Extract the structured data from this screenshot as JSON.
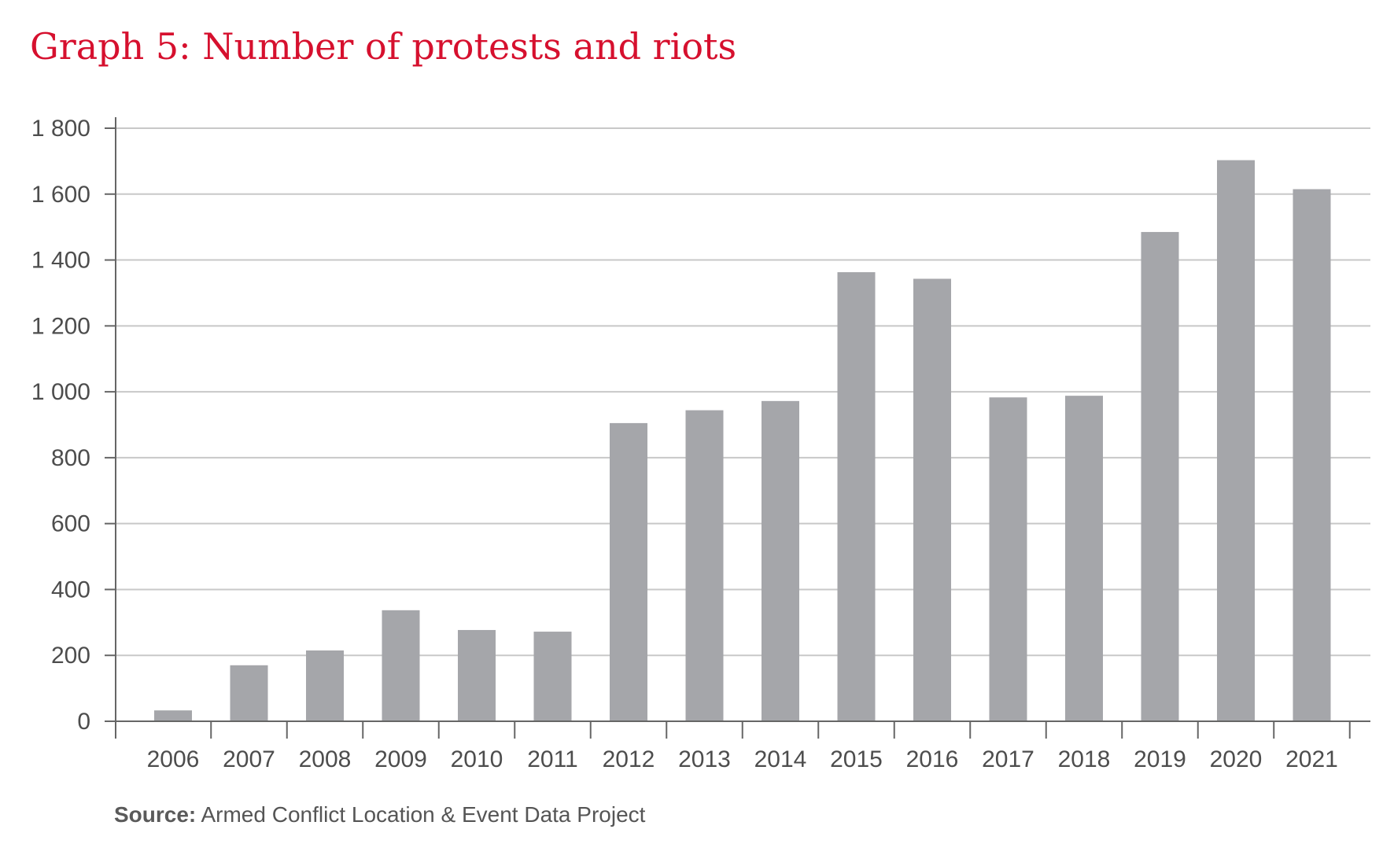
{
  "title": "Graph 5: Number of protests and riots",
  "source": {
    "label": "Source:",
    "text": "Armed Conflict Location & Event Data Project"
  },
  "colors": {
    "bar": "#a5a6aa",
    "grid": "#c8c8c8",
    "axis": "#666666",
    "title": "#d6102e"
  },
  "chart_data": {
    "type": "bar",
    "title": "Graph 5: Number of protests and riots",
    "xlabel": "",
    "ylabel": "",
    "categories": [
      "2006",
      "2007",
      "2008",
      "2009",
      "2010",
      "2011",
      "2012",
      "2013",
      "2014",
      "2015",
      "2016",
      "2017",
      "2018",
      "2019",
      "2020",
      "2021"
    ],
    "values": [
      33,
      170,
      215,
      337,
      277,
      272,
      905,
      944,
      972,
      1363,
      1343,
      983,
      988,
      1485,
      1703,
      1615
    ],
    "ylim": [
      0,
      1800
    ],
    "yticks": [
      0,
      200,
      400,
      600,
      800,
      1000,
      1200,
      1400,
      1600,
      1800
    ],
    "ytick_labels": [
      "0",
      "200",
      "400",
      "600",
      "800",
      "1 000",
      "1 200",
      "1 400",
      "1 600",
      "1 800"
    ],
    "grid": true,
    "legend": "none"
  }
}
